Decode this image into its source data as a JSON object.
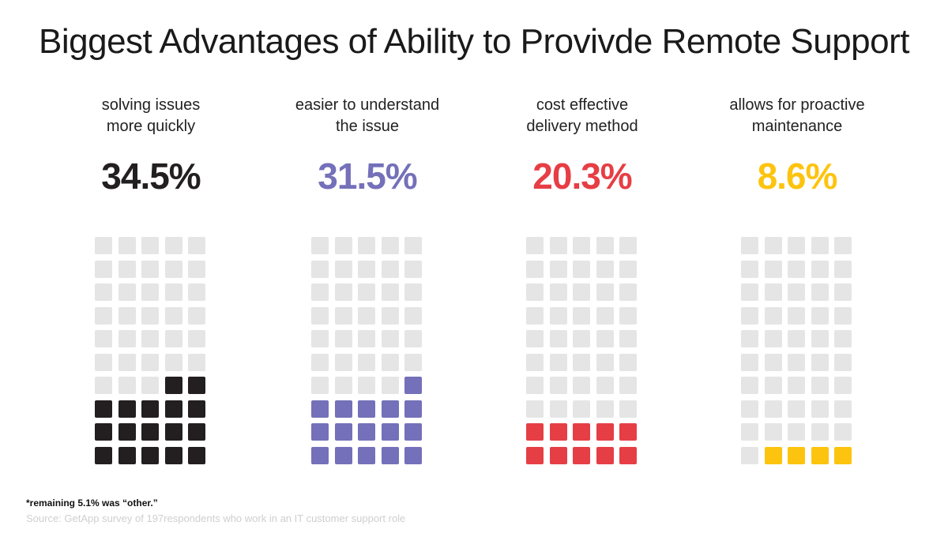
{
  "title": "Biggest Advantages of Ability to Provivde Remote Support",
  "chart_data": {
    "type": "waffle",
    "grid": {
      "rows": 10,
      "cols": 5,
      "empty_color": "#e5e5e5"
    },
    "items": [
      {
        "label_line1": "solving issues",
        "label_line2": "more quickly",
        "value_text": "34.5%",
        "value": 34.5,
        "filled_cells": 17,
        "color": "#231f20"
      },
      {
        "label_line1": "easier to understand",
        "label_line2": "the issue",
        "value_text": "31.5%",
        "value": 31.5,
        "filled_cells": 16,
        "color": "#7470b9"
      },
      {
        "label_line1": "cost effective",
        "label_line2": "delivery method",
        "value_text": "20.3%",
        "value": 20.3,
        "filled_cells": 10,
        "color": "#e63e45"
      },
      {
        "label_line1": "allows for proactive",
        "label_line2": "maintenance",
        "value_text": "8.6%",
        "value": 8.6,
        "filled_cells": 4,
        "color": "#fdc40f"
      }
    ]
  },
  "footnote": "*remaining 5.1% was “other.”",
  "source": "Source: GetApp survey of 197respondents who work in an IT customer support role"
}
